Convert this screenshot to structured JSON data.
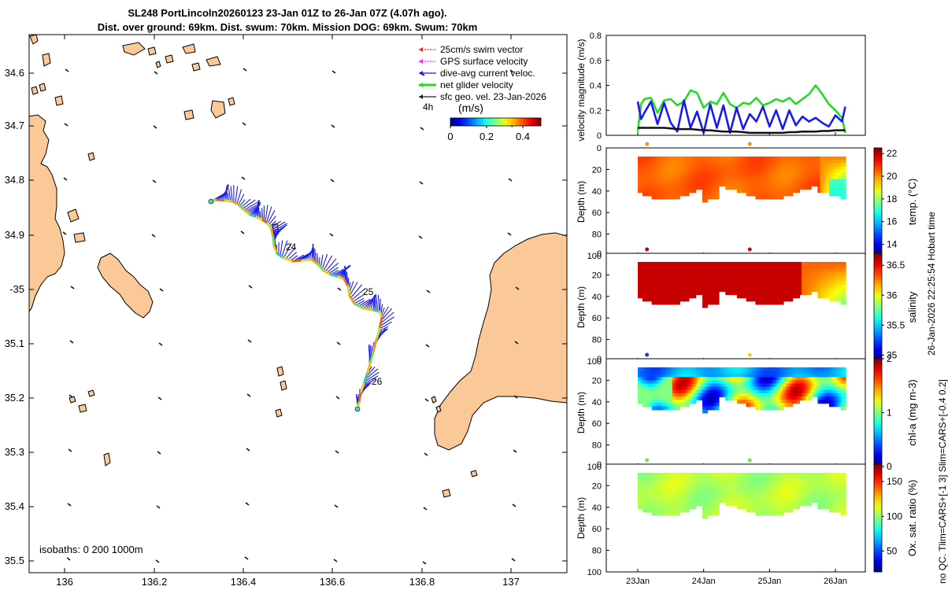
{
  "header": {
    "line1": "SL248 PortLincoln20260123 23-Jan 01Z to 26-Jan 07Z (4.07h ago).",
    "line2": "Dist. over ground: 69km. Dist. swum: 70km. Mission DOG: 69km. Swum: 70km"
  },
  "map": {
    "lon_ticks": [
      "136",
      "136.2",
      "136.4",
      "136.6",
      "136.8",
      "137"
    ],
    "lat_ticks": [
      "34.6",
      "34.7",
      "34.8",
      "34.9",
      "-35",
      "35.1",
      "35.2",
      "35.3",
      "35.4",
      "35.5"
    ],
    "legend": [
      {
        "label": "25cm/s swim vector",
        "color": "#ff2020"
      },
      {
        "label": "GPS surface velocity",
        "color": "#ff20ff"
      },
      {
        "label": "dive-avg current veloc.",
        "color": "#1a1aee"
      },
      {
        "label": "net glider velocity",
        "color": "#22dd22"
      },
      {
        "label": "sfc geo. vel. 23-Jan-2026",
        "color": "#222222"
      }
    ],
    "interval_label": "4h",
    "colorbar_title": "(m/s)",
    "colorbar_ticks": [
      "0",
      "0.2",
      "0.4"
    ],
    "day_labels": [
      "24",
      "25",
      "26"
    ],
    "isobaths_label": "isobaths: 0    200  1000m",
    "land_color": "#fbc898"
  },
  "chart_data": [
    {
      "type": "line",
      "title": "velocity magnitude",
      "ylabel": "velocity magnitude (m/s)",
      "ylim": [
        0,
        0.8
      ],
      "yticks": [
        "0",
        "0.2",
        "0.4",
        "0.6",
        "0.8"
      ],
      "x_days": [
        0.0,
        0.05,
        0.1,
        0.2,
        0.3,
        0.4,
        0.5,
        0.6,
        0.7,
        0.8,
        0.9,
        1.0,
        1.1,
        1.2,
        1.3,
        1.4,
        1.5,
        1.6,
        1.7,
        1.8,
        1.9,
        2.0,
        2.1,
        2.2,
        2.3,
        2.4,
        2.5,
        2.6,
        2.7,
        2.8,
        2.9,
        3.0,
        3.1,
        3.15
      ],
      "series": [
        {
          "name": "net glider velocity",
          "color": "#22dd22",
          "values": [
            0.03,
            0.25,
            0.29,
            0.3,
            0.18,
            0.28,
            0.29,
            0.24,
            0.27,
            0.36,
            0.34,
            0.22,
            0.27,
            0.25,
            0.34,
            0.25,
            0.22,
            0.26,
            0.25,
            0.3,
            0.24,
            0.26,
            0.29,
            0.27,
            0.3,
            0.25,
            0.29,
            0.33,
            0.4,
            0.33,
            0.25,
            0.2,
            0.14,
            0.02
          ]
        },
        {
          "name": "dive-avg current veloc.",
          "color": "#1a1aee",
          "values": [
            0.27,
            0.13,
            0.18,
            0.27,
            0.09,
            0.26,
            0.1,
            0.03,
            0.28,
            0.06,
            0.19,
            0.02,
            0.25,
            0.06,
            0.24,
            0.02,
            0.22,
            0.05,
            0.17,
            0.11,
            0.23,
            0.07,
            0.2,
            0.05,
            0.2,
            0.08,
            0.15,
            0.11,
            0.14,
            0.1,
            0.07,
            0.16,
            0.11,
            0.23
          ]
        },
        {
          "name": "sfc geo. vel.",
          "color": "#111111",
          "values": [
            0.06,
            0.06,
            0.06,
            0.06,
            0.06,
            0.06,
            0.055,
            0.05,
            0.05,
            0.05,
            0.045,
            0.04,
            0.04,
            0.035,
            0.03,
            0.03,
            0.03,
            0.025,
            0.02,
            0.02,
            0.02,
            0.02,
            0.02,
            0.02,
            0.025,
            0.025,
            0.03,
            0.03,
            0.03,
            0.035,
            0.035,
            0.04,
            0.04,
            0.04
          ]
        }
      ]
    },
    {
      "type": "heatmap",
      "title": "temp.",
      "colorbar_label": "temp. (°C)",
      "ylabel": "Depth (m)",
      "yticks": [
        "0",
        "20",
        "40",
        "60",
        "80",
        "100"
      ],
      "clim": [
        13,
        22.5
      ],
      "cb_ticks": [
        "14",
        "16",
        "18",
        "20",
        "22"
      ],
      "marker_colors": [
        "#f4911e",
        "#f4911e"
      ]
    },
    {
      "type": "heatmap",
      "title": "salinity",
      "colorbar_label": "salinity",
      "ylabel": "Depth (m)",
      "yticks": [
        "0",
        "20",
        "40",
        "60",
        "80",
        "100"
      ],
      "clim": [
        34.9,
        36.7
      ],
      "cb_ticks": [
        "35",
        "35.5",
        "36",
        "36.5"
      ],
      "marker_colors": [
        "#b01010",
        "#b01010"
      ]
    },
    {
      "type": "heatmap",
      "title": "chl-a",
      "colorbar_label": "chl-a (mg m-3)",
      "ylabel": "Depth (m)",
      "yticks": [
        "0",
        "20",
        "40",
        "60",
        "80",
        "100"
      ],
      "clim": [
        0,
        2
      ],
      "cb_ticks": [
        "0",
        "1",
        "2"
      ],
      "marker_colors": [
        "#1a3fd8",
        "#f0d020"
      ]
    },
    {
      "type": "heatmap",
      "title": "Ox. sat. ratio",
      "colorbar_label": "Ox. sat. ratio (%)",
      "ylabel": "Depth (m)",
      "yticks": [
        "0",
        "20",
        "40",
        "60",
        "80",
        "100"
      ],
      "clim": [
        20,
        175
      ],
      "cb_ticks": [
        "50",
        "100",
        "150"
      ],
      "marker_colors": [
        "#80e040",
        "#80e040"
      ],
      "x_ticks": [
        "23Jan",
        "24Jan",
        "25Jan",
        "26Jan"
      ]
    }
  ],
  "side_notes": {
    "line1": "26-Jan-2026 22:25:54 Hobart time",
    "line2": "no QC. Tlim=CARS+[-1 3] Slim=CARS+[-0.4 0.2]"
  }
}
